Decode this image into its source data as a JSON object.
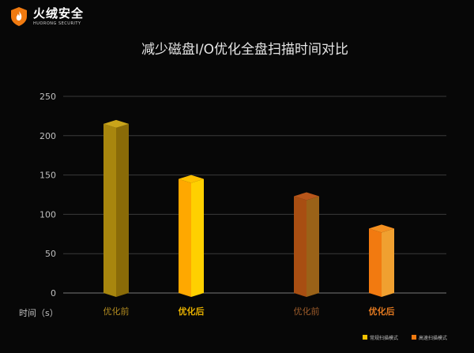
{
  "logo": {
    "name": "火绒安全",
    "subtitle": "HUORONG SECURITY"
  },
  "chart_data": {
    "type": "bar",
    "title": "减少磁盘I/O优化全盘扫描时间对比",
    "ylabel": "时间（s）",
    "ylim": [
      0,
      250
    ],
    "yticks": [
      0,
      50,
      100,
      150,
      200,
      250
    ],
    "grid": true,
    "legend_position": "bottom-right",
    "groups": [
      {
        "series": "常规扫描模式",
        "color": "#F2C200",
        "bars": [
          {
            "category": "优化前",
            "value": 215,
            "front": "#A8860E",
            "side": "#8A6B08",
            "top": "#C9A41A",
            "label_color": "#B08A20",
            "label_bold": false
          },
          {
            "category": "优化后",
            "value": 145,
            "front": "#FFA800",
            "side": "#FFD000",
            "top": "#FFC000",
            "label_color": "#E6B000",
            "label_bold": true
          }
        ]
      },
      {
        "series": "高速扫描模式",
        "color": "#F07A10",
        "bars": [
          {
            "category": "优化前",
            "value": 123,
            "front": "#A84E12",
            "side": "#9A6218",
            "top": "#B8561A",
            "label_color": "#9A5A2A",
            "label_bold": false
          },
          {
            "category": "优化后",
            "value": 82,
            "front": "#F27A10",
            "side": "#F0A030",
            "top": "#F59020",
            "label_color": "#E07820",
            "label_bold": true
          }
        ]
      }
    ],
    "legend": [
      {
        "label": "常规扫描模式",
        "color": "#F2C200"
      },
      {
        "label": "高速扫描模式",
        "color": "#F07A10"
      }
    ]
  }
}
